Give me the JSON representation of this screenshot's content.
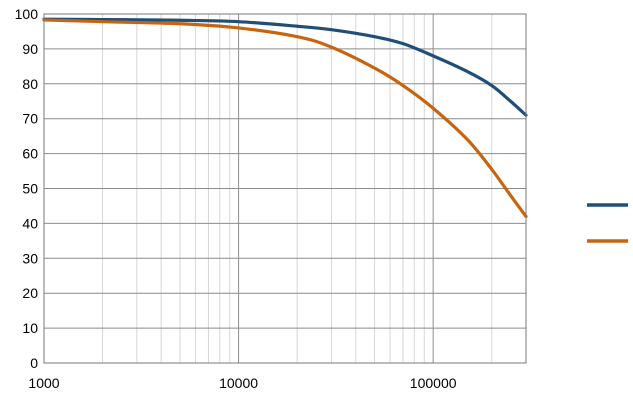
{
  "chart_data": {
    "type": "line",
    "title": "",
    "xlabel": "",
    "ylabel": "",
    "x_scale": "log",
    "xlim": [
      1000,
      300000
    ],
    "ylim": [
      0,
      100
    ],
    "grid": true,
    "legend_position": "right",
    "x_tick_labels": [
      "1000",
      "10000",
      "100000"
    ],
    "y_tick_labels": [
      "0",
      "10",
      "20",
      "30",
      "40",
      "50",
      "60",
      "70",
      "80",
      "90",
      "100"
    ],
    "series": [
      {
        "color": "#1f4e79",
        "x": [
          1000,
          2000,
          5000,
          10000,
          20000,
          30000,
          50000,
          70000,
          100000,
          150000,
          200000,
          250000,
          300000
        ],
        "y": [
          98.5,
          98.4,
          98.2,
          97.8,
          96.5,
          95.5,
          93.5,
          91.5,
          88,
          83.5,
          79.5,
          75,
          71
        ]
      },
      {
        "color": "#c8640f",
        "x": [
          1000,
          2000,
          5000,
          10000,
          20000,
          30000,
          50000,
          70000,
          100000,
          150000,
          200000,
          250000,
          300000
        ],
        "y": [
          98.3,
          97.8,
          97.2,
          96,
          93.5,
          90.5,
          84.5,
          79.5,
          73,
          64,
          55.5,
          48,
          42
        ]
      }
    ]
  }
}
